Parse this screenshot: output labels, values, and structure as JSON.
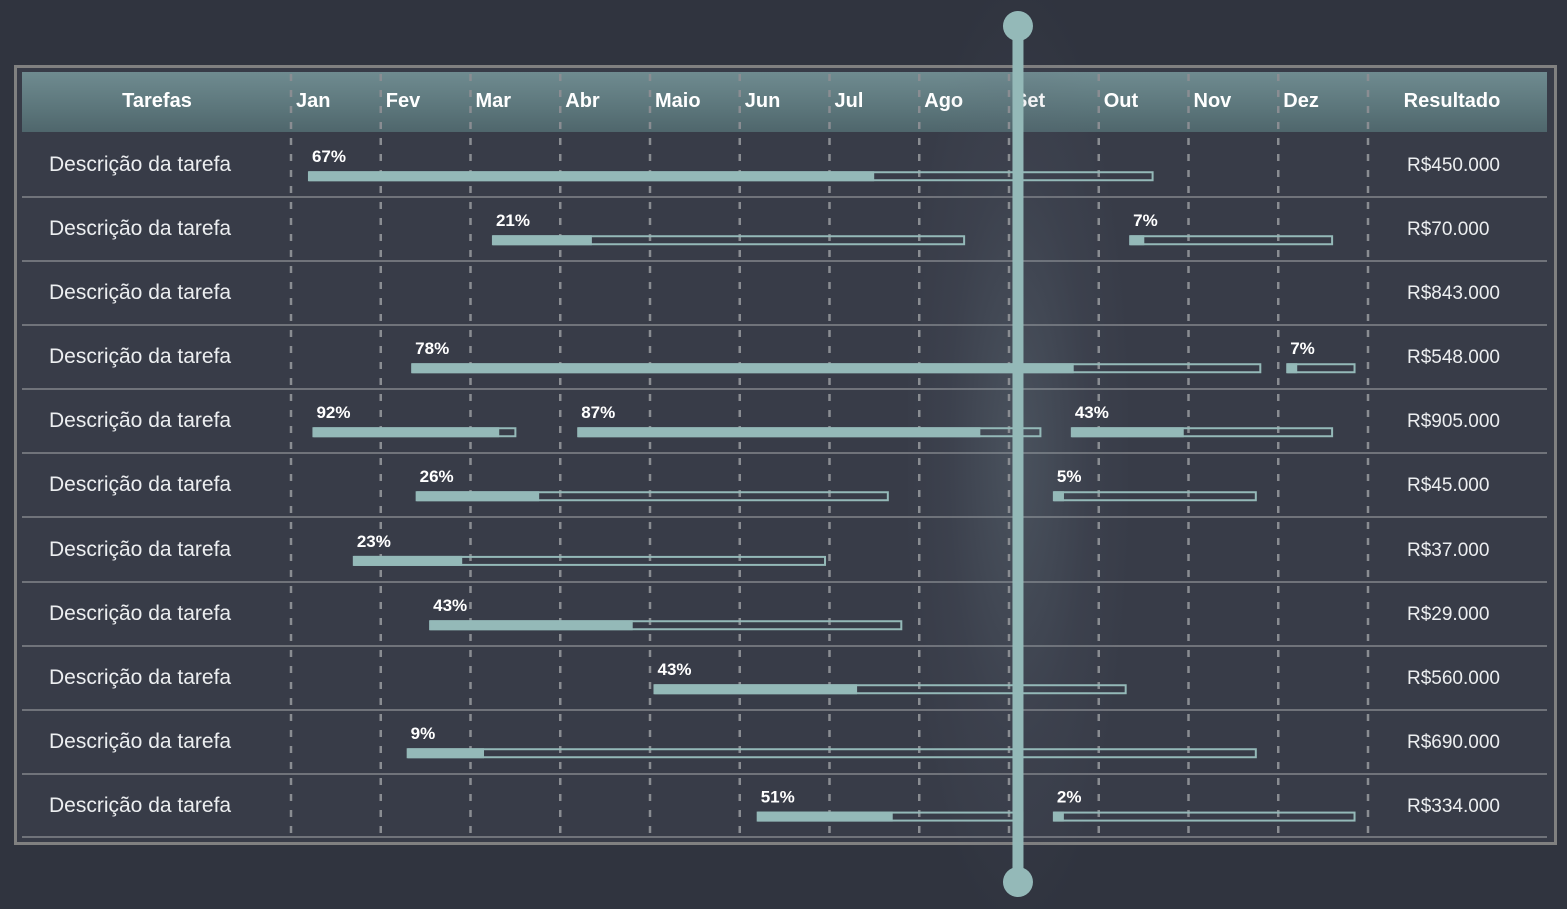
{
  "chart_data": {
    "type": "gantt",
    "columns": {
      "task": "Tarefas",
      "result": "Resultado"
    },
    "months": [
      "Jan",
      "Fev",
      "Mar",
      "Abr",
      "Maio",
      "Jun",
      "Jul",
      "Ago",
      "Set",
      "Out",
      "Nov",
      "Dez"
    ],
    "today_marker_month": 8.1,
    "colors": {
      "bar": "#94b9b8",
      "background": "#30343f",
      "table": "#383c48",
      "header": "#647f84",
      "grid": "#8a8d92"
    },
    "rows": [
      {
        "task": "Descrição da tarefa",
        "result": "R$450.000",
        "bars": [
          {
            "start": 0.2,
            "end": 9.6,
            "progress": "67%"
          }
        ]
      },
      {
        "task": "Descrição da tarefa",
        "result": "R$70.000",
        "bars": [
          {
            "start": 2.25,
            "end": 7.5,
            "progress": "21%"
          },
          {
            "start": 9.35,
            "end": 11.6,
            "progress": "7%"
          }
        ]
      },
      {
        "task": "Descrição da tarefa",
        "result": "R$843.000",
        "bars": []
      },
      {
        "task": "Descrição da tarefa",
        "result": "R$548.000",
        "bars": [
          {
            "start": 1.35,
            "end": 10.8,
            "progress": "78%"
          },
          {
            "start": 11.1,
            "end": 11.85,
            "progress": "7%"
          }
        ]
      },
      {
        "task": "Descrição da tarefa",
        "result": "R$905.000",
        "bars": [
          {
            "start": 0.25,
            "end": 2.5,
            "progress": "92%"
          },
          {
            "start": 3.2,
            "end": 8.35,
            "progress": "87%"
          },
          {
            "start": 8.7,
            "end": 11.6,
            "progress": "43%"
          }
        ]
      },
      {
        "task": "Descrição da tarefa",
        "result": "R$45.000",
        "bars": [
          {
            "start": 1.4,
            "end": 6.65,
            "progress": "26%"
          },
          {
            "start": 8.5,
            "end": 10.75,
            "progress": "5%"
          }
        ]
      },
      {
        "task": "Descrição da tarefa",
        "result": "R$37.000",
        "bars": [
          {
            "start": 0.7,
            "end": 5.95,
            "progress": "23%"
          }
        ]
      },
      {
        "task": "Descrição da tarefa",
        "result": "R$29.000",
        "bars": [
          {
            "start": 1.55,
            "end": 6.8,
            "progress": "43%"
          }
        ]
      },
      {
        "task": "Descrição da tarefa",
        "result": "R$560.000",
        "bars": [
          {
            "start": 4.05,
            "end": 9.3,
            "progress": "43%"
          }
        ]
      },
      {
        "task": "Descrição da tarefa",
        "result": "R$690.000",
        "bars": [
          {
            "start": 1.3,
            "end": 10.75,
            "progress": "9%"
          }
        ]
      },
      {
        "task": "Descrição da tarefa",
        "result": "R$334.000",
        "bars": [
          {
            "start": 5.2,
            "end": 8.15,
            "progress": "51%"
          },
          {
            "start": 8.5,
            "end": 11.85,
            "progress": "2%"
          }
        ]
      }
    ]
  }
}
